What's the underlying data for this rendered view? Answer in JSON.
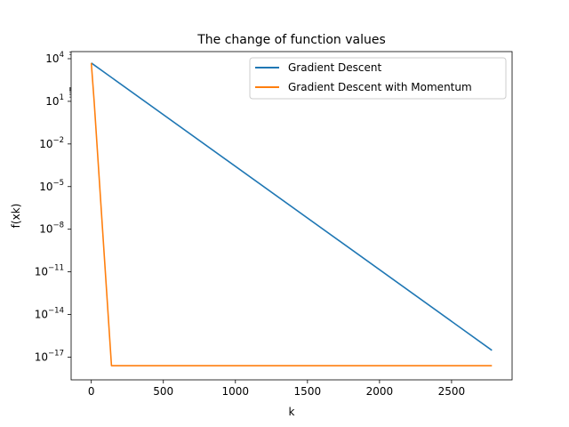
{
  "chart_data": {
    "type": "line",
    "title": "The change of function values",
    "xlabel": "k",
    "ylabel": "f(xk)",
    "xlim": [
      -140,
      2920
    ],
    "ylim_log10": [
      -18.6,
      4.5
    ],
    "yscale": "log",
    "grid": false,
    "legend_position": "top-right",
    "x_ticks": [
      0,
      500,
      1000,
      1500,
      2000,
      2500
    ],
    "x_tick_labels": [
      "0",
      "500",
      "1000",
      "1500",
      "2000",
      "2500"
    ],
    "y_ticks": [
      {
        "base": "10",
        "exp": "4",
        "value": 10000
      },
      {
        "base": "10",
        "exp": "1",
        "value": 10
      },
      {
        "base": "10",
        "exp": "−2",
        "value": 0.01
      },
      {
        "base": "10",
        "exp": "−5",
        "value": 1e-05
      },
      {
        "base": "10",
        "exp": "−8",
        "value": 1e-08
      },
      {
        "base": "10",
        "exp": "−11",
        "value": 1e-11
      },
      {
        "base": "10",
        "exp": "−14",
        "value": 1e-14
      },
      {
        "base": "10",
        "exp": "−17",
        "value": 1e-17
      }
    ],
    "series": [
      {
        "name": "Gradient Descent",
        "color": "#1f77b4",
        "x": [
          0,
          2780
        ],
        "y": [
          5000,
          3e-17
        ]
      },
      {
        "name": "Gradient Descent with Momentum",
        "color": "#ff7f0e",
        "x": [
          0,
          20,
          140,
          2780
        ],
        "y": [
          5000,
          10,
          2.5e-18,
          2.5e-18
        ]
      }
    ]
  }
}
